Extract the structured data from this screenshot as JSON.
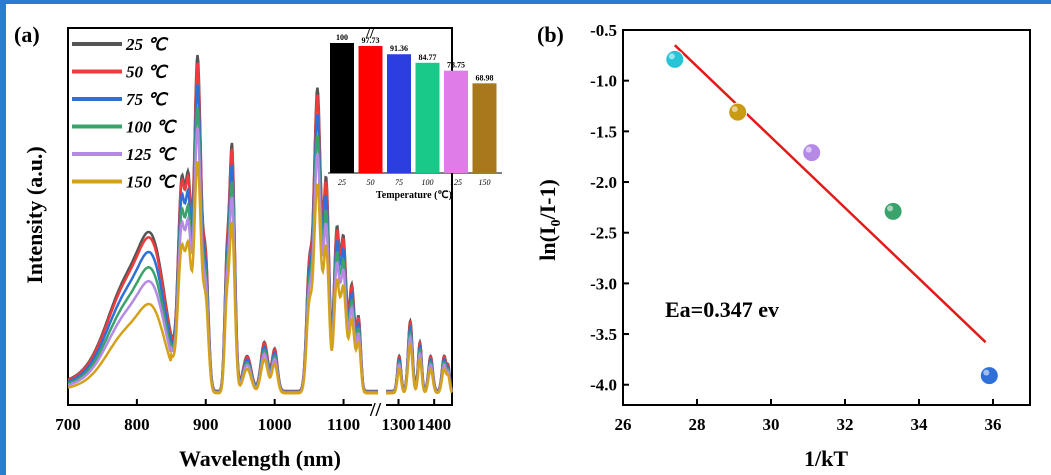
{
  "chart_data": [
    {
      "type": "line",
      "panel_label": "(a)",
      "xlabel": "Wavelength (nm)",
      "ylabel": "Intensity (a.u.)",
      "x_ticks": [
        "700",
        "800",
        "900",
        "1000",
        "1100",
        "1300",
        "1400"
      ],
      "axis_break_label": "//",
      "legend": [
        {
          "label": "25 ℃",
          "color": "#555555"
        },
        {
          "label": "50 ℃",
          "color": "#ee3b3b"
        },
        {
          "label": "75 ℃",
          "color": "#2e6fd8"
        },
        {
          "label": "100 ℃",
          "color": "#3aa36b"
        },
        {
          "label": "125 ℃",
          "color": "#b48ae6"
        },
        {
          "label": "150 ℃",
          "color": "#d4a21a"
        }
      ],
      "series": [
        {
          "name": "25 ℃",
          "scale": 1.0
        },
        {
          "name": "50 ℃",
          "scale": 0.977
        },
        {
          "name": "75 ℃",
          "scale": 0.914
        },
        {
          "name": "100 ℃",
          "scale": 0.848
        },
        {
          "name": "125 ℃",
          "scale": 0.788
        },
        {
          "name": "150 ℃",
          "scale": 0.69
        }
      ],
      "inset": {
        "type": "bar",
        "xlabel": "Temperature (℃)",
        "categories": [
          "25",
          "50",
          "75",
          "100",
          "125",
          "150"
        ],
        "values": [
          100,
          97.73,
          91.36,
          84.77,
          78.75,
          68.98
        ],
        "value_labels": [
          "100",
          "97.73",
          "91.36",
          "84.77",
          "78.75",
          "68.98"
        ],
        "colors": [
          "#000000",
          "#ff0000",
          "#2b3fe0",
          "#19c98a",
          "#e07ce8",
          "#a8791c"
        ]
      }
    },
    {
      "type": "scatter",
      "panel_label": "(b)",
      "xlabel": "1/kT",
      "ylabel": "ln(I0/I-1)",
      "xlim": [
        26,
        37
      ],
      "ylim": [
        -4.2,
        -0.5
      ],
      "x_ticks": [
        "26",
        "28",
        "30",
        "32",
        "34",
        "36"
      ],
      "y_ticks": [
        "-0.5",
        "-1.0",
        "-1.5",
        "-2.0",
        "-2.5",
        "-3.0",
        "-3.5",
        "-4.0"
      ],
      "points": [
        {
          "x": 27.4,
          "y": -0.79,
          "color": "#27c4d8"
        },
        {
          "x": 29.1,
          "y": -1.31,
          "color": "#c99a14"
        },
        {
          "x": 31.1,
          "y": -1.71,
          "color": "#b48ae6"
        },
        {
          "x": 33.3,
          "y": -2.29,
          "color": "#3aa36b"
        },
        {
          "x": 35.9,
          "y": -3.91,
          "color": "#2e6fd8"
        }
      ],
      "fit_line": {
        "x": [
          27.4,
          35.8
        ],
        "y": [
          -0.65,
          -3.58
        ],
        "color": "#e31a1a"
      },
      "annotation": "Ea=0.347 ev"
    }
  ]
}
